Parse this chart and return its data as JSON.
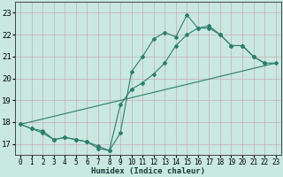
{
  "xlabel": "Humidex (Indice chaleur)",
  "bg_color": "#c8e8e0",
  "grid_color": "#b0c8c0",
  "line_color": "#2d7d6e",
  "xlim": [
    -0.5,
    23.5
  ],
  "ylim": [
    16.5,
    23.5
  ],
  "xticks": [
    0,
    1,
    2,
    3,
    4,
    5,
    6,
    7,
    8,
    9,
    10,
    11,
    12,
    13,
    14,
    15,
    16,
    17,
    18,
    19,
    20,
    21,
    22,
    23
  ],
  "yticks": [
    17,
    18,
    19,
    20,
    21,
    22,
    23
  ],
  "line1_x": [
    0,
    1,
    2,
    3,
    4,
    5,
    6,
    7,
    8,
    9,
    10,
    11,
    12,
    13,
    14,
    15,
    16,
    17,
    18,
    19,
    20,
    21,
    22
  ],
  "line1_y": [
    17.9,
    17.7,
    17.5,
    17.2,
    17.3,
    17.2,
    17.1,
    16.8,
    16.7,
    17.5,
    20.3,
    21.0,
    21.8,
    22.1,
    21.9,
    22.9,
    22.3,
    22.4,
    22.0,
    21.5,
    21.5,
    21.0,
    20.7
  ],
  "line2_x": [
    0,
    1,
    2,
    3,
    4,
    5,
    6,
    7,
    8,
    9,
    10,
    11,
    12,
    13,
    14,
    15,
    16,
    17,
    18,
    19,
    20,
    21,
    22,
    23
  ],
  "line2_y": [
    17.9,
    17.7,
    17.6,
    17.2,
    17.3,
    17.2,
    17.1,
    16.9,
    16.7,
    18.8,
    19.5,
    19.8,
    20.2,
    20.7,
    21.5,
    22.0,
    22.3,
    22.3,
    22.0,
    21.5,
    21.5,
    21.0,
    20.7,
    20.7
  ],
  "line3_x": [
    0,
    23
  ],
  "line3_y": [
    17.9,
    20.7
  ]
}
